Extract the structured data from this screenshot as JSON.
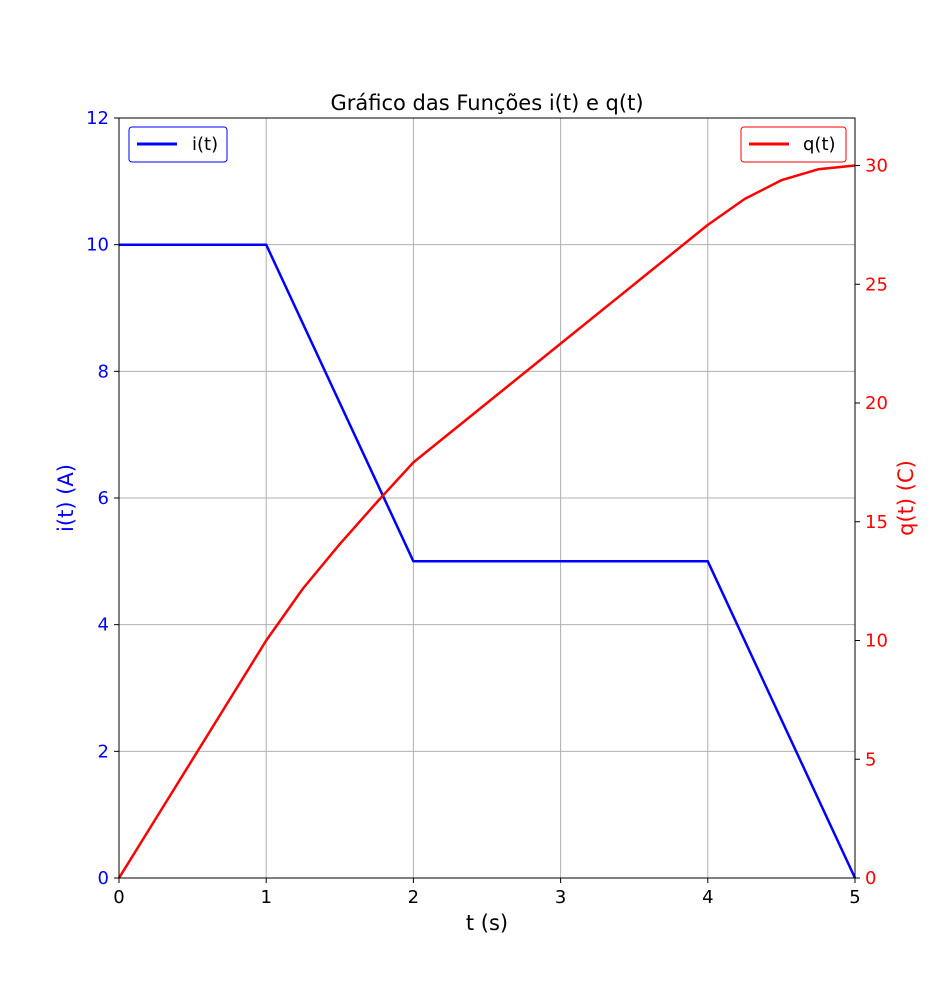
{
  "chart_data": {
    "type": "line",
    "title": "Gráfico das Funções i(t) e q(t)",
    "xlabel": "t (s)",
    "xlim": [
      0,
      5
    ],
    "xticks": [
      "0",
      "1",
      "2",
      "3",
      "4",
      "5"
    ],
    "y_left": {
      "label": "i(t) (A)",
      "lim": [
        0,
        12
      ],
      "ticks": [
        "0",
        "2",
        "4",
        "6",
        "8",
        "10",
        "12"
      ],
      "color": "#0000ff"
    },
    "y_right": {
      "label": "q(t) (C)",
      "lim": [
        0,
        32
      ],
      "ticks": [
        "0",
        "5",
        "10",
        "15",
        "20",
        "25",
        "30"
      ],
      "color": "#ff0000"
    },
    "grid": true,
    "series": [
      {
        "name": "i(t)",
        "axis": "left",
        "color": "#0000ff",
        "legend_position": "top-left",
        "x": [
          0,
          1,
          2,
          4,
          5
        ],
        "y": [
          10,
          10,
          5,
          5,
          0
        ]
      },
      {
        "name": "q(t)",
        "axis": "right",
        "color": "#ff0000",
        "legend_position": "top-right",
        "x": [
          0,
          0.25,
          0.5,
          0.75,
          1,
          1.25,
          1.5,
          1.75,
          2,
          2.5,
          3,
          3.5,
          4,
          4.25,
          4.5,
          4.75,
          5
        ],
        "y": [
          0,
          2.5,
          5,
          7.5,
          10,
          12.19,
          14.06,
          15.81,
          17.5,
          20,
          22.5,
          25,
          27.5,
          28.59,
          29.38,
          29.84,
          30
        ]
      }
    ]
  }
}
